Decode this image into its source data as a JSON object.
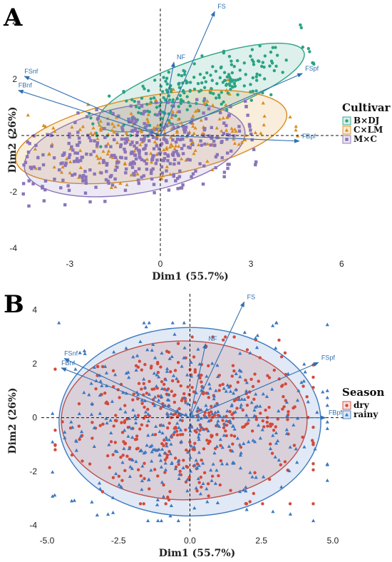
{
  "chart_data": [
    {
      "panel_label": "A",
      "type": "scatter",
      "xlabel": "Dim1 (55.7%)",
      "ylabel": "Dim2 (26%)",
      "xlim": [
        -4.6,
        6.3
      ],
      "ylim": [
        -4.3,
        4.5
      ],
      "x_ticks": [
        -3,
        0,
        3,
        6
      ],
      "y_ticks": [
        -4,
        -2,
        0,
        2,
        4
      ],
      "grid": false,
      "legend": {
        "title": "Cultivar",
        "position": "right"
      },
      "series": [
        {
          "name": "B×DJ",
          "color": "#2aa385",
          "marker": "circle",
          "n": 230,
          "ellipse": {
            "cx": 1.35,
            "cy": 1.7,
            "rx": 3.6,
            "ry": 1.0,
            "angle_deg": -19
          }
        },
        {
          "name": "C×LM",
          "color": "#d98c1e",
          "marker": "triangle",
          "n": 200,
          "ellipse": {
            "cx": -0.3,
            "cy": -0.05,
            "rx": 4.55,
            "ry": 1.45,
            "angle_deg": -10
          }
        },
        {
          "name": "M×C",
          "color": "#8a74b8",
          "marker": "square",
          "n": 380,
          "ellipse": {
            "cx": -0.85,
            "cy": -0.5,
            "rx": 3.7,
            "ry": 1.55,
            "angle_deg": -10
          }
        }
      ],
      "vectors": [
        {
          "label": "FS",
          "x": 1.8,
          "y": 4.4
        },
        {
          "label": "FSpf",
          "x": 4.7,
          "y": 2.2
        },
        {
          "label": "FSnf",
          "x": -4.5,
          "y": 2.1
        },
        {
          "label": "FBnf",
          "x": -4.7,
          "y": 1.6
        },
        {
          "label": "FBpf",
          "x": 4.6,
          "y": -0.2
        },
        {
          "label": "NF",
          "x": 0.45,
          "y": 2.6
        }
      ]
    },
    {
      "panel_label": "B",
      "type": "scatter",
      "xlabel": "Dim1 (55.7%)",
      "ylabel": "Dim2 (26%)",
      "xlim": [
        -5.2,
        5.4
      ],
      "ylim": [
        -4.3,
        4.6
      ],
      "x_ticks": [
        -5.0,
        -2.5,
        0.0,
        2.5,
        5.0
      ],
      "y_ticks": [
        -4,
        -2,
        0,
        2,
        4
      ],
      "grid": false,
      "legend": {
        "title": "Season",
        "position": "right"
      },
      "series": [
        {
          "name": "dry",
          "color": "#d24a3a",
          "marker": "circle",
          "n": 400,
          "ellipse": {
            "cx": -0.2,
            "cy": -0.1,
            "rx": 4.3,
            "ry": 2.95,
            "angle_deg": 0
          }
        },
        {
          "name": "rainy",
          "color": "#3c78c0",
          "marker": "triangle",
          "n": 420,
          "ellipse": {
            "cx": 0.0,
            "cy": -0.15,
            "rx": 4.58,
            "ry": 3.5,
            "angle_deg": 0
          }
        }
      ],
      "vectors": [
        {
          "label": "FS",
          "x": 1.9,
          "y": 4.3
        },
        {
          "label": "FSpf",
          "x": 4.5,
          "y": 2.05
        },
        {
          "label": "FSnf",
          "x": -4.4,
          "y": 2.2
        },
        {
          "label": "FBnf",
          "x": -4.5,
          "y": 1.85
        },
        {
          "label": "FBpf",
          "x": 4.75,
          "y": 0.0
        },
        {
          "label": "NF",
          "x": 0.55,
          "y": 2.75
        }
      ]
    }
  ]
}
